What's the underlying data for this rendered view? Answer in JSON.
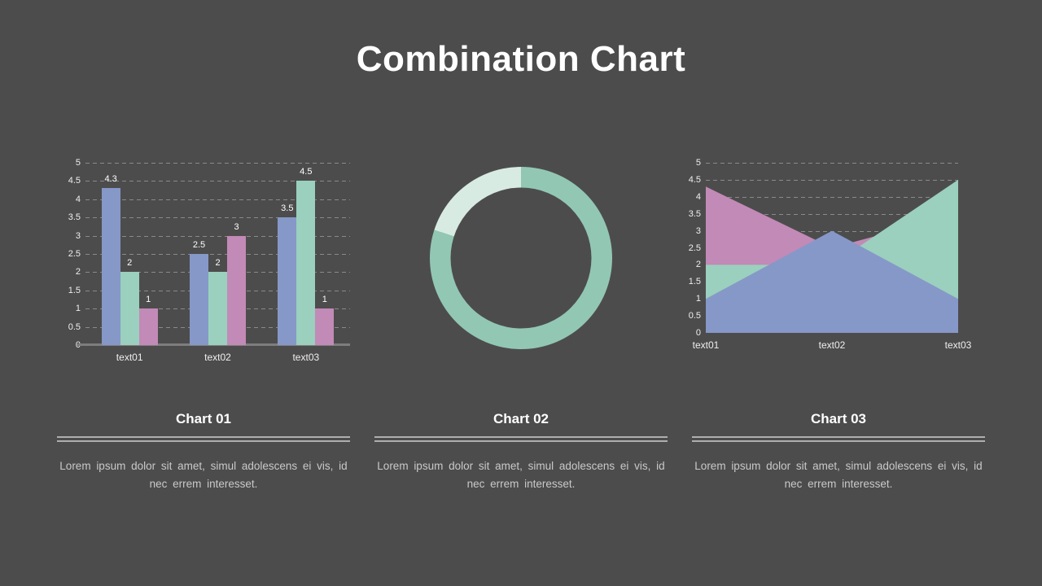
{
  "slide": {
    "title": "Combination Chart",
    "background": "#4d4c4c"
  },
  "palette": {
    "blue": "#8698c8",
    "green": "#9ad0bd",
    "pink": "#c28ab7",
    "teal": "#92c7b4",
    "mint": "#d8ebe3",
    "grid": "#9e9e9e",
    "axis": "#7e7e7e",
    "tick_text": "#efefef",
    "value_text": "#ffffff",
    "heading_text": "#ffffff",
    "body_text": "#c9c9c9",
    "divider": "#aeaeae"
  },
  "chart_data": [
    {
      "id": "bar-chart",
      "type": "bar",
      "categories": [
        "text01",
        "text02",
        "text03"
      ],
      "series": [
        {
          "name": "series-blue",
          "color_key": "blue",
          "values": [
            4.3,
            2.5,
            3.5
          ]
        },
        {
          "name": "series-green",
          "color_key": "green",
          "values": [
            2,
            2,
            4.5
          ]
        },
        {
          "name": "series-pink",
          "color_key": "pink",
          "values": [
            1,
            3,
            1
          ]
        }
      ],
      "value_labels": [
        "4.3",
        "2",
        "1",
        "2.5",
        "2",
        "3",
        "3.5",
        "4.5",
        "1"
      ],
      "tick_labels": [
        "0",
        "0.5",
        "1",
        "1.5",
        "2",
        "2.5",
        "3",
        "3.5",
        "4",
        "4.5",
        "5"
      ],
      "ylim": [
        0,
        5
      ],
      "ystep": 0.5,
      "grid": true,
      "legend": "none"
    },
    {
      "id": "donut-chart",
      "type": "pie",
      "donut": true,
      "start_at": "top",
      "segments": [
        {
          "name": "segment-teal",
          "color_key": "teal",
          "percent": 80
        },
        {
          "name": "segment-mint",
          "color_key": "mint",
          "percent": 20
        }
      ],
      "legend": "none"
    },
    {
      "id": "area-chart",
      "type": "area",
      "categories": [
        "text01",
        "text02",
        "text03"
      ],
      "series": [
        {
          "name": "series-pink",
          "color_key": "pink",
          "values": [
            4.3,
            2.5,
            3.5
          ]
        },
        {
          "name": "series-green",
          "color_key": "green",
          "values": [
            2,
            2,
            4.5
          ]
        },
        {
          "name": "series-blue",
          "color_key": "blue",
          "values": [
            1,
            3,
            1
          ]
        }
      ],
      "tick_labels": [
        "0",
        "0.5",
        "1",
        "1.5",
        "2",
        "2.5",
        "3",
        "3.5",
        "4",
        "4.5",
        "5"
      ],
      "ylim": [
        0,
        5
      ],
      "ystep": 0.5,
      "grid": true,
      "legend": "none"
    }
  ],
  "sections": [
    {
      "heading": "Chart 01",
      "body": "Lorem ipsum dolor sit amet, simul adolescens ei vis, id nec errem interesset."
    },
    {
      "heading": "Chart 02",
      "body": "Lorem ipsum dolor sit amet, simul adolescens ei vis, id nec errem interesset."
    },
    {
      "heading": "Chart 03",
      "body": "Lorem ipsum dolor sit amet, simul adolescens ei vis, id nec errem interesset."
    }
  ]
}
